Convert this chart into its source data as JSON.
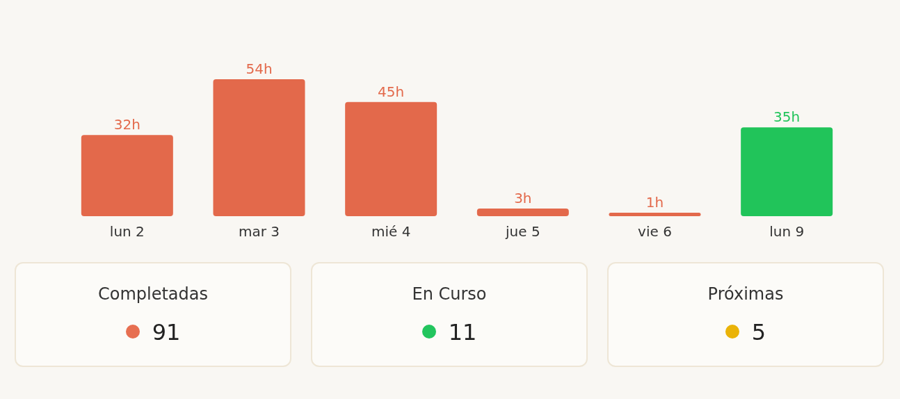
{
  "chart_data": [
    {
      "type": "bar",
      "categories": [
        "lun 2",
        "mar 3",
        "mié 4",
        "jue 5",
        "vie 6",
        "lun 9"
      ],
      "values": [
        32,
        54,
        45,
        3,
        1,
        35
      ],
      "colors": [
        "#e3694b",
        "#e3694b",
        "#e3694b",
        "#e3694b",
        "#e3694b",
        "#21c45a"
      ],
      "value_labels": [
        "32h",
        "54h",
        "45h",
        "3h",
        "1h",
        "35h"
      ]
    },
    {
      "type": "other",
      "annotations": [
        "Completadas",
        "91",
        "En Curso",
        "11",
        "Próximas",
        "5"
      ]
    }
  ]
}
